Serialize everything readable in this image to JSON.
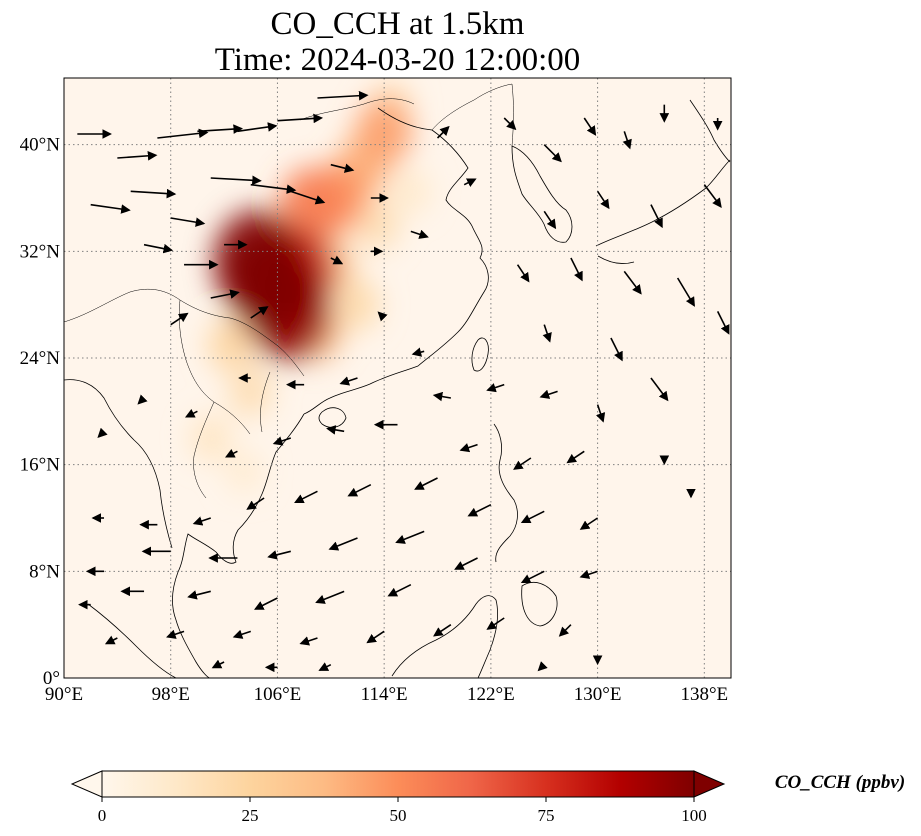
{
  "title": {
    "line1": "CO_CCH at 1.5km",
    "line2": "Time: 2024-03-20 12:00:00"
  },
  "map": {
    "lon_range": [
      90,
      140
    ],
    "lat_range": [
      0,
      45
    ],
    "lon_ticks": [
      {
        "value": 90,
        "label": "90°E"
      },
      {
        "value": 98,
        "label": "98°E"
      },
      {
        "value": 106,
        "label": "106°E"
      },
      {
        "value": 114,
        "label": "114°E"
      },
      {
        "value": 122,
        "label": "122°E"
      },
      {
        "value": 130,
        "label": "130°E"
      },
      {
        "value": 138,
        "label": "138°E"
      }
    ],
    "lat_ticks": [
      {
        "value": 0,
        "label": "0°"
      },
      {
        "value": 8,
        "label": "8°N"
      },
      {
        "value": 16,
        "label": "16°N"
      },
      {
        "value": 24,
        "label": "24°N"
      },
      {
        "value": 32,
        "label": "32°N"
      },
      {
        "value": 40,
        "label": "40°N"
      }
    ],
    "gridlines": "dotted",
    "background_color": "#fff5eb",
    "coastline_color": "#000000"
  },
  "colorbar": {
    "colormap": "OrRd",
    "stops": [
      "#fff7ec",
      "#fee8c8",
      "#fdd49e",
      "#fdbb84",
      "#fc8d59",
      "#ef6548",
      "#d7301f",
      "#b30000",
      "#7f0000"
    ],
    "min": 0,
    "max": 100,
    "extend": "both",
    "ticks": [
      {
        "value": 0,
        "label": "0"
      },
      {
        "value": 25,
        "label": "25"
      },
      {
        "value": 50,
        "label": "50"
      },
      {
        "value": 75,
        "label": "75"
      },
      {
        "value": 100,
        "label": "100"
      }
    ],
    "label": "CO_CCH (ppbv)"
  },
  "plumes": [
    {
      "lon": 105.5,
      "lat": 29.5,
      "value": 100
    },
    {
      "lon": 104.5,
      "lat": 31.2,
      "value": 100
    },
    {
      "lon": 106.8,
      "lat": 27.5,
      "value": 95
    },
    {
      "lon": 107.5,
      "lat": 30.5,
      "value": 80
    },
    {
      "lon": 108.5,
      "lat": 35.5,
      "value": 55
    },
    {
      "lon": 110.5,
      "lat": 36.0,
      "value": 50
    },
    {
      "lon": 112.5,
      "lat": 38.5,
      "value": 40
    },
    {
      "lon": 114.0,
      "lat": 41.0,
      "value": 45
    },
    {
      "lon": 110.0,
      "lat": 31.0,
      "value": 30
    },
    {
      "lon": 109.0,
      "lat": 26.0,
      "value": 35
    },
    {
      "lon": 112.0,
      "lat": 28.0,
      "value": 22
    },
    {
      "lon": 102.5,
      "lat": 25.0,
      "value": 25
    },
    {
      "lon": 104.0,
      "lat": 21.5,
      "value": 20
    },
    {
      "lon": 101.0,
      "lat": 18.0,
      "value": 15
    },
    {
      "lon": 103.5,
      "lat": 15.5,
      "value": 10
    },
    {
      "lon": 113.5,
      "lat": 34.0,
      "value": 20
    },
    {
      "lon": 116.0,
      "lat": 36.5,
      "value": 12
    },
    {
      "lon": 114.5,
      "lat": 43.0,
      "value": 18
    }
  ],
  "wind_vectors": [
    {
      "lon": 91,
      "lat": 40.8,
      "u": 6,
      "v": 0
    },
    {
      "lon": 94,
      "lat": 39.0,
      "u": 7,
      "v": 0.5
    },
    {
      "lon": 97,
      "lat": 40.5,
      "u": 9,
      "v": 1
    },
    {
      "lon": 100,
      "lat": 41.0,
      "u": 8,
      "v": 0.5
    },
    {
      "lon": 103,
      "lat": 41.0,
      "u": 7,
      "v": 1
    },
    {
      "lon": 106,
      "lat": 41.8,
      "u": 8,
      "v": 0.5
    },
    {
      "lon": 109,
      "lat": 43.5,
      "u": 9,
      "v": 0.5
    },
    {
      "lon": 92,
      "lat": 35.5,
      "u": 7,
      "v": -1
    },
    {
      "lon": 95,
      "lat": 36.5,
      "u": 8,
      "v": -0.5
    },
    {
      "lon": 98,
      "lat": 34.5,
      "u": 6,
      "v": -1
    },
    {
      "lon": 101,
      "lat": 37.5,
      "u": 9,
      "v": -0.5
    },
    {
      "lon": 104,
      "lat": 37.0,
      "u": 8,
      "v": -1
    },
    {
      "lon": 107,
      "lat": 36.5,
      "u": 6,
      "v": -2
    },
    {
      "lon": 110,
      "lat": 38.5,
      "u": 4,
      "v": -1
    },
    {
      "lon": 113,
      "lat": 36.0,
      "u": 3,
      "v": 0
    },
    {
      "lon": 96,
      "lat": 32.5,
      "u": 5,
      "v": -1
    },
    {
      "lon": 99,
      "lat": 31.0,
      "u": 6,
      "v": 0
    },
    {
      "lon": 102,
      "lat": 32.5,
      "u": 4,
      "v": 0
    },
    {
      "lon": 101,
      "lat": 28.5,
      "u": 5,
      "v": 1
    },
    {
      "lon": 98,
      "lat": 26.5,
      "u": 3,
      "v": 2
    },
    {
      "lon": 104,
      "lat": 27.0,
      "u": 3,
      "v": 2
    },
    {
      "lon": 110,
      "lat": 31.5,
      "u": 2,
      "v": -1
    },
    {
      "lon": 113,
      "lat": 32.0,
      "u": 2,
      "v": 0
    },
    {
      "lon": 116,
      "lat": 33.5,
      "u": 3,
      "v": -1
    },
    {
      "lon": 118,
      "lat": 40.5,
      "u": 2,
      "v": 2
    },
    {
      "lon": 120,
      "lat": 37.0,
      "u": 2,
      "v": 1
    },
    {
      "lon": 123,
      "lat": 42.0,
      "u": 2,
      "v": -2
    },
    {
      "lon": 126,
      "lat": 40.0,
      "u": 3,
      "v": -3
    },
    {
      "lon": 129,
      "lat": 42.0,
      "u": 2,
      "v": -3
    },
    {
      "lon": 132,
      "lat": 41.0,
      "u": 1,
      "v": -3
    },
    {
      "lon": 135,
      "lat": 43.0,
      "u": 0,
      "v": -3
    },
    {
      "lon": 139,
      "lat": 42.0,
      "u": 0,
      "v": -2
    },
    {
      "lon": 126,
      "lat": 35.0,
      "u": 2,
      "v": -3
    },
    {
      "lon": 130,
      "lat": 36.5,
      "u": 2,
      "v": -3
    },
    {
      "lon": 134,
      "lat": 35.5,
      "u": 2,
      "v": -4
    },
    {
      "lon": 138,
      "lat": 37.0,
      "u": 3,
      "v": -4
    },
    {
      "lon": 124,
      "lat": 31.0,
      "u": 2,
      "v": -3
    },
    {
      "lon": 128,
      "lat": 31.5,
      "u": 2,
      "v": -4
    },
    {
      "lon": 132,
      "lat": 30.5,
      "u": 3,
      "v": -4
    },
    {
      "lon": 136,
      "lat": 30.0,
      "u": 3,
      "v": -5
    },
    {
      "lon": 139,
      "lat": 27.5,
      "u": 2,
      "v": -4
    },
    {
      "lon": 126,
      "lat": 26.5,
      "u": 1,
      "v": -3
    },
    {
      "lon": 131,
      "lat": 25.5,
      "u": 2,
      "v": -4
    },
    {
      "lon": 134,
      "lat": 22.5,
      "u": 3,
      "v": -4
    },
    {
      "lon": 130,
      "lat": 20.5,
      "u": 1,
      "v": -3
    },
    {
      "lon": 135,
      "lat": 16.5,
      "u": 0,
      "v": -1
    },
    {
      "lon": 137,
      "lat": 14.0,
      "u": 0,
      "v": -1
    },
    {
      "lon": 114,
      "lat": 27.0,
      "u": -1,
      "v": 1
    },
    {
      "lon": 117,
      "lat": 24.5,
      "u": -2,
      "v": -0.5
    },
    {
      "lon": 112,
      "lat": 22.5,
      "u": -3,
      "v": -1
    },
    {
      "lon": 108,
      "lat": 22.0,
      "u": -3,
      "v": 0
    },
    {
      "lon": 104,
      "lat": 22.5,
      "u": -2,
      "v": 0
    },
    {
      "lon": 100,
      "lat": 20.0,
      "u": -2,
      "v": -1
    },
    {
      "lon": 96,
      "lat": 21.0,
      "u": -1,
      "v": -1
    },
    {
      "lon": 93,
      "lat": 18.5,
      "u": -1,
      "v": -1
    },
    {
      "lon": 119,
      "lat": 21.0,
      "u": -3,
      "v": 0.5
    },
    {
      "lon": 123,
      "lat": 22.0,
      "u": -3,
      "v": -1
    },
    {
      "lon": 127,
      "lat": 21.5,
      "u": -3,
      "v": -1
    },
    {
      "lon": 115,
      "lat": 19.0,
      "u": -4,
      "v": 0
    },
    {
      "lon": 111,
      "lat": 18.5,
      "u": -3,
      "v": 0.5
    },
    {
      "lon": 107,
      "lat": 18.0,
      "u": -3,
      "v": -1
    },
    {
      "lon": 103,
      "lat": 17.0,
      "u": -2,
      "v": -1
    },
    {
      "lon": 121,
      "lat": 17.5,
      "u": -3,
      "v": -1
    },
    {
      "lon": 125,
      "lat": 16.5,
      "u": -3,
      "v": -2
    },
    {
      "lon": 129,
      "lat": 17.0,
      "u": -3,
      "v": -2
    },
    {
      "lon": 118,
      "lat": 15.0,
      "u": -4,
      "v": -2
    },
    {
      "lon": 113,
      "lat": 14.5,
      "u": -4,
      "v": -2
    },
    {
      "lon": 109,
      "lat": 14.0,
      "u": -4,
      "v": -2
    },
    {
      "lon": 105,
      "lat": 13.5,
      "u": -3,
      "v": -2
    },
    {
      "lon": 101,
      "lat": 12.0,
      "u": -3,
      "v": -1
    },
    {
      "lon": 97,
      "lat": 11.5,
      "u": -3,
      "v": 0
    },
    {
      "lon": 93,
      "lat": 12.0,
      "u": -2,
      "v": 0
    },
    {
      "lon": 122,
      "lat": 13.0,
      "u": -4,
      "v": -2
    },
    {
      "lon": 126,
      "lat": 12.5,
      "u": -4,
      "v": -2
    },
    {
      "lon": 130,
      "lat": 12.0,
      "u": -3,
      "v": -2
    },
    {
      "lon": 117,
      "lat": 11.0,
      "u": -5,
      "v": -2
    },
    {
      "lon": 112,
      "lat": 10.5,
      "u": -5,
      "v": -2
    },
    {
      "lon": 107,
      "lat": 9.5,
      "u": -4,
      "v": -1
    },
    {
      "lon": 103,
      "lat": 9.0,
      "u": -5,
      "v": 0
    },
    {
      "lon": 98,
      "lat": 9.5,
      "u": -5,
      "v": 0
    },
    {
      "lon": 93,
      "lat": 8.0,
      "u": -3,
      "v": 0
    },
    {
      "lon": 121,
      "lat": 9.0,
      "u": -4,
      "v": -2
    },
    {
      "lon": 126,
      "lat": 8.0,
      "u": -4,
      "v": -2
    },
    {
      "lon": 130,
      "lat": 8.0,
      "u": -3,
      "v": -1
    },
    {
      "lon": 116,
      "lat": 7.0,
      "u": -4,
      "v": -2
    },
    {
      "lon": 111,
      "lat": 6.5,
      "u": -5,
      "v": -2
    },
    {
      "lon": 106,
      "lat": 6.0,
      "u": -4,
      "v": -2
    },
    {
      "lon": 101,
      "lat": 6.5,
      "u": -4,
      "v": -1
    },
    {
      "lon": 96,
      "lat": 6.5,
      "u": -4,
      "v": 0
    },
    {
      "lon": 92,
      "lat": 5.5,
      "u": -2,
      "v": 0
    },
    {
      "lon": 119,
      "lat": 4.0,
      "u": -3,
      "v": -2
    },
    {
      "lon": 114,
      "lat": 3.5,
      "u": -3,
      "v": -2
    },
    {
      "lon": 109,
      "lat": 3.0,
      "u": -3,
      "v": -1
    },
    {
      "lon": 104,
      "lat": 3.5,
      "u": -3,
      "v": -1
    },
    {
      "lon": 99,
      "lat": 3.5,
      "u": -3,
      "v": -1
    },
    {
      "lon": 94,
      "lat": 3.0,
      "u": -2,
      "v": -1
    },
    {
      "lon": 123,
      "lat": 4.5,
      "u": -3,
      "v": -2
    },
    {
      "lon": 128,
      "lat": 4.0,
      "u": -2,
      "v": -2
    },
    {
      "lon": 110,
      "lat": 1.0,
      "u": -2,
      "v": -1
    },
    {
      "lon": 106,
      "lat": 0.8,
      "u": -2,
      "v": 0
    },
    {
      "lon": 102,
      "lat": 1.2,
      "u": -2,
      "v": -1
    },
    {
      "lon": 126,
      "lat": 1.0,
      "u": -1,
      "v": -1
    },
    {
      "lon": 130,
      "lat": 1.5,
      "u": 0,
      "v": -1
    }
  ]
}
